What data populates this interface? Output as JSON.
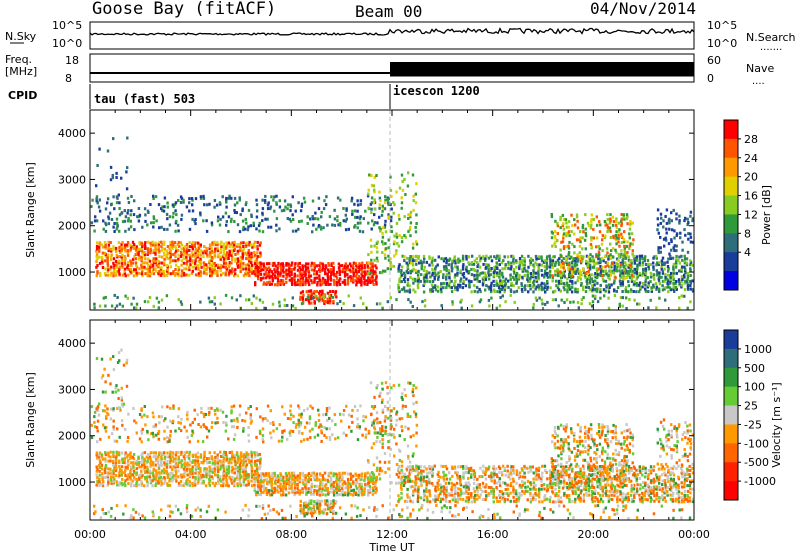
{
  "header": {
    "site": "Goose Bay (fitACF)",
    "beam": "Beam 00",
    "date": "04/Nov/2014"
  },
  "noise_panel": {
    "left_label": "N.Sky",
    "right_label": "N.Search",
    "left_ticks": [
      "10^5",
      "10^0"
    ],
    "right_ticks": [
      "10^5",
      "10^0"
    ]
  },
  "freq_panel": {
    "left_label_1": "Freq.",
    "left_label_2": "[MHz]",
    "right_label": "Nave",
    "left_ticks": [
      "18",
      "8"
    ],
    "right_ticks": [
      "60",
      "0"
    ]
  },
  "cpid_panel": {
    "label": "CPID",
    "programs": [
      {
        "name": "tau (fast) 503",
        "start_hour": 0
      },
      {
        "name": "icescon 1200",
        "start_hour": 12
      }
    ]
  },
  "chart_data": [
    {
      "type": "heatmap",
      "name": "power",
      "xlabel": "Time UT",
      "ylabel": "Slant Range [km]",
      "x_range_hours": [
        0,
        24
      ],
      "ylim": [
        180,
        4500
      ],
      "yticks": [
        "1000",
        "2000",
        "3000",
        "4000"
      ],
      "colorbar": {
        "label": "Power [dB]",
        "ticks": [
          "28",
          "24",
          "20",
          "16",
          "12",
          "8",
          "4"
        ],
        "colors": [
          "#ff0000",
          "#ff5500",
          "#ff9900",
          "#e0d000",
          "#88cc22",
          "#2f9a3a",
          "#2d6e7a",
          "#1a3c9b",
          "#0000e0"
        ]
      },
      "regions": [
        {
          "t": [
            0.2,
            6.5
          ],
          "r": [
            900,
            1700
          ],
          "level": "high"
        },
        {
          "t": [
            6.5,
            11.3
          ],
          "r": [
            800,
            1200
          ],
          "level": "high"
        },
        {
          "t": [
            8.5,
            9.5
          ],
          "r": [
            400,
            600
          ],
          "level": "high"
        },
        {
          "t": [
            12.5,
            24
          ],
          "r": [
            600,
            1400
          ],
          "level": "low"
        },
        {
          "t": [
            18.5,
            21.5
          ],
          "r": [
            1000,
            2200
          ],
          "level": "mid"
        },
        {
          "t": [
            1,
            12
          ],
          "r": [
            2000,
            2600
          ],
          "level": "low"
        }
      ]
    },
    {
      "type": "heatmap",
      "name": "velocity",
      "xlabel": "Time UT",
      "ylabel": "Slant Range [km]",
      "x_range_hours": [
        0,
        24
      ],
      "ylim": [
        180,
        4500
      ],
      "yticks": [
        "1000",
        "2000",
        "3000",
        "4000"
      ],
      "xticks": [
        "00:00",
        "04:00",
        "08:00",
        "12:00",
        "16:00",
        "20:00",
        "00:00"
      ],
      "colorbar": {
        "label": "Velocity [m s⁻¹]",
        "ticks": [
          "1000",
          "500",
          "100",
          "25",
          "-25",
          "-100",
          "-500",
          "-1000"
        ],
        "colors": [
          "#1a3c9b",
          "#2d6e7a",
          "#2f9a3a",
          "#66cc33",
          "#c8c8c8",
          "#ff9900",
          "#ff6600",
          "#ff2200",
          "#ff0000"
        ]
      }
    }
  ]
}
